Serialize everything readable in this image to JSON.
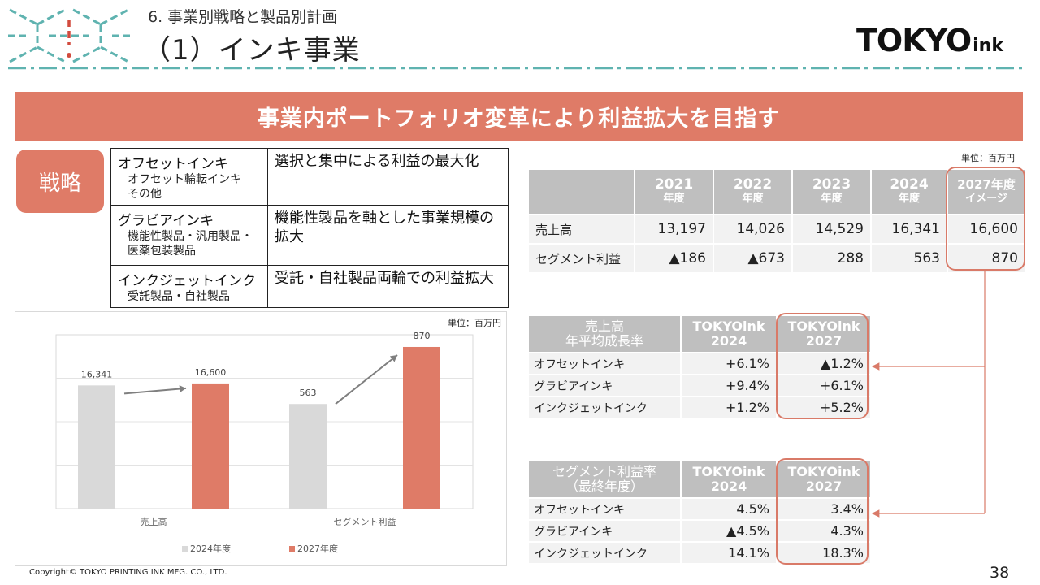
{
  "header": {
    "section_title": "6. 事業別戦略と製品別計画",
    "page_title": "（1）インキ事業",
    "brand_main": "TOKYO",
    "brand_sub": "ink"
  },
  "banner": {
    "text": "事業内ポートフォリオ変革により利益拡大を目指す"
  },
  "strategy": {
    "badge": "戦略",
    "rows": [
      {
        "category": "オフセットインキ",
        "subs": [
          "オフセット輪転インキ",
          "その他"
        ],
        "strategy": "選択と集中による利益の最大化"
      },
      {
        "category": "グラビアインキ",
        "subs": [
          "機能性製品・汎用製品・",
          "医薬包装製品"
        ],
        "strategy": "機能性製品を軸とした事業規模の拡大"
      },
      {
        "category": "インクジェットインク",
        "subs": [
          "受託製品・自社製品"
        ],
        "strategy": "受託・自社製品両輪での利益拡大"
      }
    ]
  },
  "chart_data": {
    "type": "bar",
    "unit": "単位：百万円",
    "categories": [
      "売上高",
      "セグメント利益"
    ],
    "series": [
      {
        "name": "2024年度",
        "values": [
          16341,
          563
        ],
        "labels": [
          "16,341",
          "563"
        ],
        "color": "#d9d9d9"
      },
      {
        "name": "2027年度",
        "values": [
          16600,
          870
        ],
        "labels": [
          "16,600",
          "870"
        ],
        "color": "#df7b67"
      }
    ]
  },
  "performance": {
    "unit": "単位：百万円",
    "headers": [
      {
        "year": "2021",
        "sub": "年度"
      },
      {
        "year": "2022",
        "sub": "年度"
      },
      {
        "year": "2023",
        "sub": "年度"
      },
      {
        "year": "2024",
        "sub": "年度"
      },
      {
        "year": "2027年度",
        "sub": "イメージ"
      }
    ],
    "rows": [
      {
        "label": "売上高",
        "values": [
          "13,197",
          "14,026",
          "14,529",
          "16,341",
          "16,600"
        ]
      },
      {
        "label": "セグメント利益",
        "values": [
          "▲186",
          "▲673",
          "288",
          "563",
          "870"
        ]
      }
    ]
  },
  "growth": {
    "caption_line1": "売上高",
    "caption_line2": "年平均成長率",
    "col1_line1": "TOKYOink",
    "col1_line2": "2024",
    "col2_line1": "TOKYOink",
    "col2_line2": "2027",
    "rows": [
      {
        "label": "オフセットインキ",
        "v2024": "+6.1%",
        "v2027": "▲1.2%"
      },
      {
        "label": "グラビアインキ",
        "v2024": "+9.4%",
        "v2027": "+6.1%"
      },
      {
        "label": "インクジェットインク",
        "v2024": "+1.2%",
        "v2027": "+5.2%"
      }
    ]
  },
  "margin": {
    "caption_line1": "セグメント利益率",
    "caption_line2": "（最終年度）",
    "col1_line1": "TOKYOink",
    "col1_line2": "2024",
    "col2_line1": "TOKYOink",
    "col2_line2": "2027",
    "rows": [
      {
        "label": "オフセットインキ",
        "v2024": "4.5%",
        "v2027": "3.4%"
      },
      {
        "label": "グラビアインキ",
        "v2024": "▲4.5%",
        "v2027": "4.3%"
      },
      {
        "label": "インクジェットインク",
        "v2024": "14.1%",
        "v2027": "18.3%"
      }
    ]
  },
  "footer": {
    "copyright": "Copyright© TOKYO PRINTING INK MFG. CO., LTD.",
    "page_number": "38"
  }
}
